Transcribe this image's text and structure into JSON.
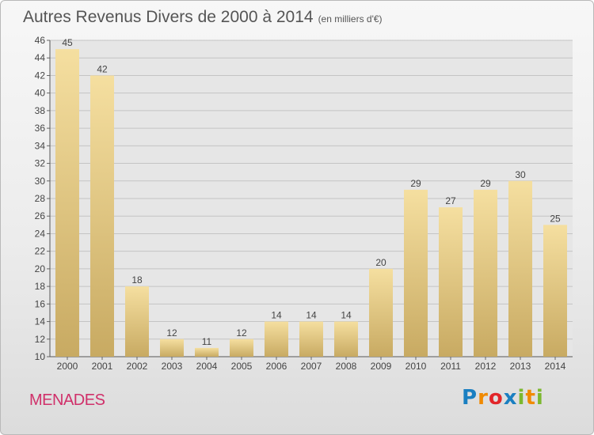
{
  "title": "Autres Revenus Divers de 2000 à 2014",
  "subtitle": "(en milliers d'€)",
  "commune": "MENADES",
  "logo": {
    "letters": [
      "P",
      "r",
      "o",
      "x",
      "i",
      "t",
      "i"
    ],
    "colors": [
      "#1a7fc1",
      "#f08a00",
      "#e2262a",
      "#1a7fc1",
      "#7cb82f",
      "#f08a00",
      "#7cb82f"
    ]
  },
  "colors": {
    "bar_light": "#f5dfa0",
    "bar_dark": "#c8aa62",
    "commune_text": "#d0306a"
  },
  "chart_data": {
    "type": "bar",
    "title": "Autres Revenus Divers de 2000 à 2014",
    "subtitle": "(en milliers d'€)",
    "categories": [
      "2000",
      "2001",
      "2002",
      "2003",
      "2004",
      "2005",
      "2006",
      "2007",
      "2008",
      "2009",
      "2010",
      "2011",
      "2012",
      "2013",
      "2014"
    ],
    "values": [
      45,
      42,
      18,
      12,
      11,
      12,
      14,
      14,
      14,
      20,
      29,
      27,
      29,
      30,
      25
    ],
    "ylim": [
      10,
      46
    ],
    "yticks": [
      10,
      12,
      14,
      16,
      18,
      20,
      22,
      24,
      26,
      28,
      30,
      32,
      34,
      36,
      38,
      40,
      42,
      44,
      46
    ],
    "grid": true,
    "xlabel": "",
    "ylabel": ""
  }
}
